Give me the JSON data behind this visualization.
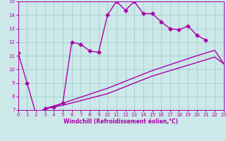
{
  "title": "",
  "xlabel": "Windchill (Refroidissement éolien,°C)",
  "bg_color": "#cce8e8",
  "line_color": "#aa00aa",
  "grid_color": "#99cccc",
  "xlim": [
    0,
    23
  ],
  "ylim": [
    7,
    15
  ],
  "xticks": [
    0,
    1,
    2,
    3,
    4,
    5,
    6,
    7,
    8,
    9,
    10,
    11,
    12,
    13,
    14,
    15,
    16,
    17,
    18,
    19,
    20,
    21,
    22,
    23
  ],
  "yticks": [
    7,
    8,
    9,
    10,
    11,
    12,
    13,
    14,
    15
  ],
  "lines": [
    {
      "x": [
        0,
        1,
        2,
        3,
        4,
        5,
        6,
        7,
        8,
        9,
        10,
        11,
        12,
        13,
        14,
        15,
        16,
        17,
        18,
        19,
        20,
        21
      ],
      "y": [
        11.2,
        9.0,
        6.7,
        7.1,
        7.2,
        7.5,
        12.0,
        11.85,
        11.35,
        11.25,
        14.0,
        15.0,
        14.35,
        15.0,
        14.1,
        14.1,
        13.5,
        13.0,
        12.9,
        13.2,
        12.5,
        12.15
      ],
      "markers": true
    },
    {
      "x": [
        3,
        5,
        10,
        15,
        20,
        21,
        22,
        23
      ],
      "y": [
        7.1,
        7.5,
        8.6,
        9.9,
        11.0,
        11.2,
        11.4,
        10.4
      ],
      "markers": false
    },
    {
      "x": [
        3,
        5,
        10,
        15,
        20,
        22,
        23
      ],
      "y": [
        7.1,
        7.35,
        8.2,
        9.5,
        10.5,
        10.9,
        10.4
      ],
      "markers": false
    }
  ],
  "marker": "D",
  "markersize": 2.5,
  "linewidth": 1.0,
  "tick_fontsize": 5,
  "xlabel_fontsize": 5.5
}
